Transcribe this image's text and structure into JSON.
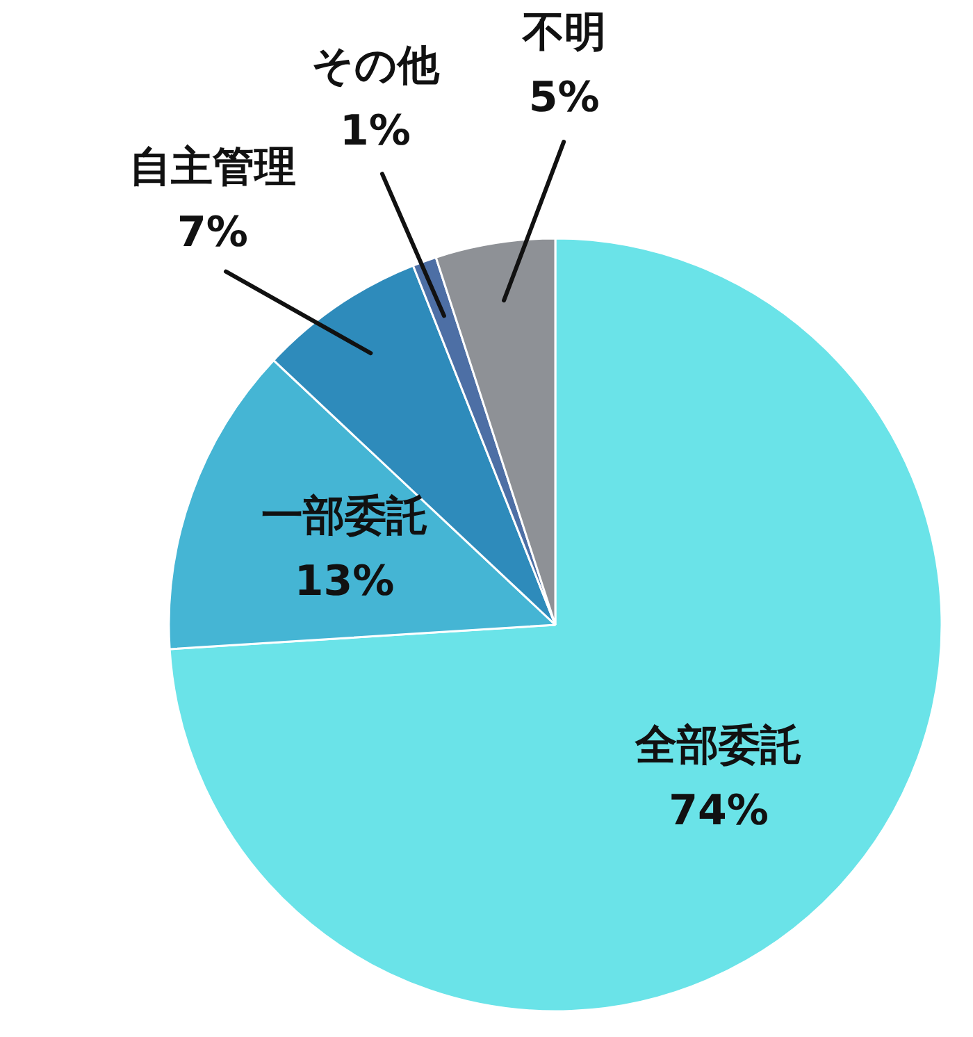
{
  "chart_data": {
    "type": "pie",
    "categories": [
      "全部委託",
      "一部委託",
      "自主管理",
      "その他",
      "不明"
    ],
    "values": [
      74,
      13,
      7,
      1,
      5
    ],
    "colors": [
      "#6ae3e8",
      "#45b5d4",
      "#2e8bbb",
      "#4d6fa5",
      "#8e9196"
    ],
    "value_labels": [
      "74%",
      "13%",
      "7%",
      "1%",
      "5%"
    ],
    "legend": false
  }
}
